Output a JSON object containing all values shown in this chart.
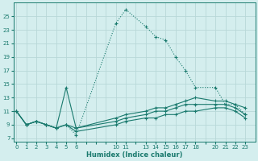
{
  "xlabel": "Humidex (Indice chaleur)",
  "bg_color": "#d4eeee",
  "line_color": "#1a7a6e",
  "grid_color": "#b8d8d8",
  "lines": [
    {
      "style": ":",
      "x": [
        0,
        1,
        2,
        3,
        4,
        5,
        6,
        10,
        11,
        13,
        14,
        15,
        16,
        17,
        18,
        20,
        21,
        22,
        23
      ],
      "y": [
        11,
        9,
        9.5,
        9,
        8.5,
        9,
        7.5,
        24,
        26,
        23.5,
        22,
        21.5,
        19,
        17,
        14.5,
        14.5,
        12,
        12,
        10.5
      ]
    },
    {
      "style": "-",
      "x": [
        0,
        1,
        2,
        3,
        4,
        5,
        6,
        10,
        11,
        13,
        14,
        15,
        16,
        17,
        18,
        20,
        21,
        22,
        23
      ],
      "y": [
        11,
        9,
        9.5,
        9,
        8.5,
        14.5,
        8.5,
        10,
        10.5,
        11,
        11.5,
        11.5,
        12,
        12.5,
        13,
        12.5,
        12.5,
        12,
        11.5
      ]
    },
    {
      "style": "-",
      "x": [
        0,
        1,
        2,
        3,
        4,
        5,
        6,
        10,
        11,
        13,
        14,
        15,
        16,
        17,
        18,
        20,
        21,
        22,
        23
      ],
      "y": [
        11,
        9,
        9.5,
        9,
        8.5,
        9,
        8.5,
        9.5,
        10,
        10.5,
        11,
        11,
        11.5,
        12,
        12,
        12,
        12,
        11.5,
        10.5
      ]
    },
    {
      "style": "-",
      "x": [
        0,
        1,
        2,
        3,
        4,
        5,
        6,
        10,
        11,
        13,
        14,
        15,
        16,
        17,
        18,
        20,
        21,
        22,
        23
      ],
      "y": [
        11,
        9,
        9.5,
        9,
        8.5,
        9,
        8.0,
        9.0,
        9.5,
        10,
        10,
        10.5,
        10.5,
        11,
        11,
        11.5,
        11.5,
        11,
        10.0
      ]
    }
  ],
  "yticks": [
    7,
    9,
    11,
    13,
    15,
    17,
    19,
    21,
    23,
    25
  ],
  "xtick_labels": [
    "0",
    "1",
    "2",
    "3",
    "4",
    "5",
    "6",
    "",
    "",
    "",
    "10",
    "11",
    "",
    "13",
    "14",
    "15",
    "16",
    "17",
    "18",
    "",
    "20",
    "21",
    "22",
    "23"
  ],
  "xtick_positions": [
    0,
    1,
    2,
    3,
    4,
    5,
    6,
    7,
    8,
    9,
    10,
    11,
    12,
    13,
    14,
    15,
    16,
    17,
    18,
    19,
    20,
    21,
    22,
    23
  ],
  "ylim": [
    6.5,
    27
  ],
  "xlim": [
    -0.3,
    24.0
  ]
}
